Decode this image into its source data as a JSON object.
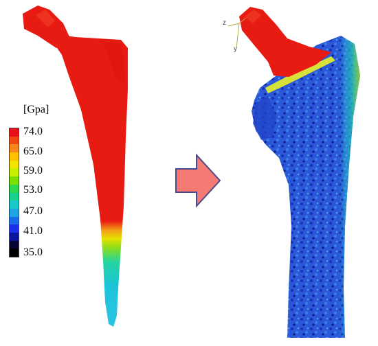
{
  "legend": {
    "unit": "[Gpa]",
    "ticks": [
      "74.0",
      "65.0",
      "59.0",
      "53.0",
      "47.0",
      "41.0",
      "35.0"
    ],
    "colors": [
      "#e8111a",
      "#f04a10",
      "#f7871a",
      "#ffc000",
      "#f2e400",
      "#c8ee00",
      "#7be000",
      "#2ed84f",
      "#19d18f",
      "#19c8c8",
      "#1fa5e6",
      "#1a6be8",
      "#1a2fe6",
      "#0b139a",
      "#050533",
      "#000000"
    ]
  },
  "axes_labels": {
    "z": "z",
    "y": "y"
  },
  "colors": {
    "implant_red": "#e81b12",
    "arrow_fill": "#f47b74",
    "arrow_stroke": "#4a4a8a",
    "bone_blue": "#2b58d8"
  }
}
